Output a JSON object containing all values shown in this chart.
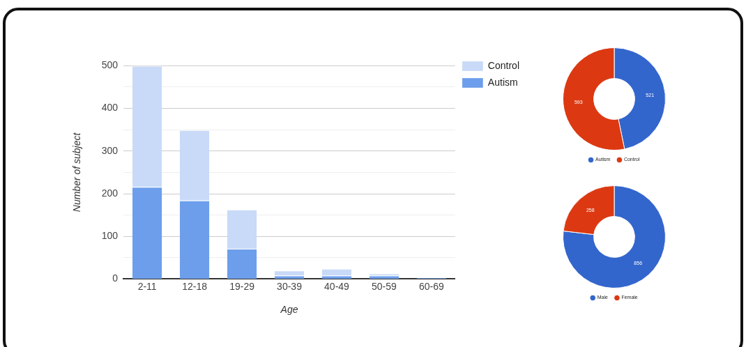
{
  "chart_data": [
    {
      "type": "bar",
      "categories": [
        "2-11",
        "12-18",
        "19-29",
        "30-39",
        "40-49",
        "50-59",
        "60-69"
      ],
      "stacked": true,
      "xlabel": "Age",
      "ylabel": "Number of subject",
      "ylim": [
        0,
        500
      ],
      "yticks": [
        0,
        {
          "value": 50,
          "label": null
        },
        100,
        {
          "value": 150,
          "label": null
        },
        200,
        {
          "value": 250,
          "label": null
        },
        300,
        {
          "value": 350,
          "label": null
        },
        400,
        {
          "value": 450,
          "label": null
        },
        500
      ],
      "grid": "y",
      "legend": "right",
      "series": [
        {
          "name": "Autism",
          "color": "#6d9eeb",
          "values": [
            216,
            184,
            71,
            8,
            8,
            8,
            3
          ]
        },
        {
          "name": "Control",
          "color": "#c9daf8",
          "values": [
            284,
            165,
            92,
            12,
            16,
            5,
            null
          ]
        }
      ]
    },
    {
      "type": "donut",
      "categories": [
        "Autism",
        "Control"
      ],
      "values": [
        521,
        593
      ],
      "colors": [
        "#3366cc",
        "#dc3912"
      ],
      "data_labels": true,
      "legend": "bottom"
    },
    {
      "type": "donut",
      "categories": [
        "Male",
        "Female"
      ],
      "values": [
        856,
        258
      ],
      "colors": [
        "#3366cc",
        "#dc3912"
      ],
      "data_labels": true,
      "legend": "bottom"
    }
  ]
}
